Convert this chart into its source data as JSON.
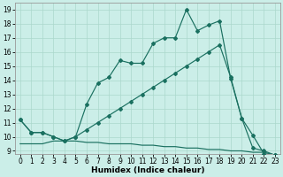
{
  "xlabel": "Humidex (Indice chaleur)",
  "background_color": "#cbeee8",
  "grid_color": "#aad8cc",
  "line_color": "#1a7060",
  "xlim": [
    -0.5,
    23.5
  ],
  "ylim": [
    8.8,
    19.5
  ],
  "yticks": [
    9,
    10,
    11,
    12,
    13,
    14,
    15,
    16,
    17,
    18,
    19
  ],
  "xticks": [
    0,
    1,
    2,
    3,
    4,
    5,
    6,
    7,
    8,
    9,
    10,
    11,
    12,
    13,
    14,
    15,
    16,
    17,
    18,
    19,
    20,
    21,
    22,
    23
  ],
  "s1_x": [
    0,
    1,
    2,
    3,
    4,
    5,
    6,
    7,
    8,
    9,
    10,
    11,
    12,
    13,
    14,
    15,
    16,
    17,
    18,
    19,
    20,
    21,
    22,
    23
  ],
  "s1_y": [
    11.2,
    10.3,
    10.3,
    10.0,
    9.7,
    10.0,
    12.3,
    13.8,
    14.2,
    15.4,
    15.2,
    15.2,
    16.6,
    17.0,
    17.0,
    19.0,
    17.5,
    17.9,
    18.2,
    14.1,
    11.3,
    10.1,
    8.8,
    8.7
  ],
  "s2_x": [
    0,
    1,
    2,
    3,
    4,
    5,
    6,
    7,
    8,
    9,
    10,
    11,
    12,
    13,
    14,
    15,
    16,
    17,
    18,
    19,
    20,
    21,
    22,
    23
  ],
  "s2_y": [
    11.2,
    10.3,
    10.3,
    10.0,
    9.7,
    10.0,
    10.5,
    11.0,
    11.5,
    12.0,
    12.5,
    13.0,
    13.5,
    14.0,
    14.5,
    15.0,
    15.5,
    16.0,
    16.5,
    14.2,
    11.3,
    9.2,
    9.0,
    8.7
  ],
  "s3_x": [
    0,
    1,
    2,
    3,
    4,
    5,
    6,
    7,
    8,
    9,
    10,
    11,
    12,
    13,
    14,
    15,
    16,
    17,
    18,
    19,
    20,
    21,
    22,
    23
  ],
  "s3_y": [
    9.5,
    9.5,
    9.5,
    9.7,
    9.7,
    9.7,
    9.6,
    9.6,
    9.5,
    9.5,
    9.5,
    9.4,
    9.4,
    9.3,
    9.3,
    9.2,
    9.2,
    9.1,
    9.1,
    9.0,
    9.0,
    8.9,
    8.9,
    8.7
  ],
  "xlabel_fontsize": 6.5,
  "tick_fontsize": 5.5
}
